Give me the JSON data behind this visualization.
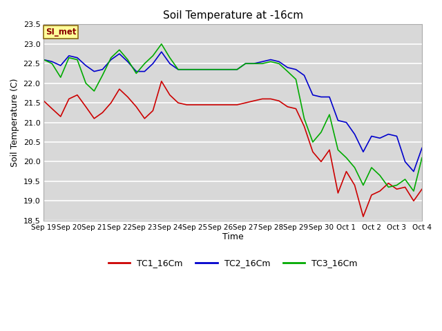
{
  "title": "Soil Temperature at -16cm",
  "xlabel": "Time",
  "ylabel": "Soil Temperature (C)",
  "ylim": [
    18.5,
    23.5
  ],
  "annotation": "SI_met",
  "outer_bg": "#ffffff",
  "plot_bg_color": "#d8d8d8",
  "xtick_labels": [
    "Sep 19",
    "Sep 20",
    "Sep 21",
    "Sep 22",
    "Sep 23",
    "Sep 24",
    "Sep 25",
    "Sep 26",
    "Sep 27",
    "Sep 28",
    "Sep 29",
    "Sep 30",
    "Oct 1",
    "Oct 2",
    "Oct 3",
    "Oct 4"
  ],
  "ytick_vals": [
    18.5,
    19.0,
    19.5,
    20.0,
    20.5,
    21.0,
    21.5,
    22.0,
    22.5,
    23.0,
    23.5
  ],
  "series": {
    "TC1_16Cm": {
      "color": "#cc0000",
      "x": [
        0,
        0.33,
        0.67,
        1.0,
        1.33,
        1.67,
        2.0,
        2.33,
        2.67,
        3.0,
        3.33,
        3.67,
        4.0,
        4.33,
        4.67,
        5.0,
        5.33,
        5.67,
        6.0,
        6.33,
        6.67,
        7.0,
        7.33,
        7.67,
        8.0,
        8.33,
        8.67,
        9.0,
        9.33,
        9.67,
        10.0,
        10.33,
        10.67,
        11.0,
        11.33,
        11.67,
        12.0,
        12.33,
        12.67,
        13.0,
        13.33,
        13.67,
        14.0,
        14.33,
        14.67,
        15.0
      ],
      "y": [
        21.55,
        21.35,
        21.15,
        21.6,
        21.7,
        21.4,
        21.1,
        21.25,
        21.5,
        21.85,
        21.65,
        21.4,
        21.1,
        21.3,
        22.05,
        21.7,
        21.5,
        21.45,
        21.45,
        21.45,
        21.45,
        21.45,
        21.45,
        21.45,
        21.5,
        21.55,
        21.6,
        21.6,
        21.55,
        21.4,
        21.35,
        20.9,
        20.25,
        20.0,
        20.3,
        19.2,
        19.75,
        19.4,
        18.6,
        19.15,
        19.25,
        19.45,
        19.3,
        19.35,
        19.0,
        19.3
      ]
    },
    "TC2_16Cm": {
      "color": "#0000cc",
      "x": [
        0,
        0.33,
        0.67,
        1.0,
        1.33,
        1.67,
        2.0,
        2.33,
        2.67,
        3.0,
        3.33,
        3.67,
        4.0,
        4.33,
        4.67,
        5.0,
        5.33,
        5.67,
        6.0,
        6.33,
        6.67,
        7.0,
        7.33,
        7.67,
        8.0,
        8.33,
        8.67,
        9.0,
        9.33,
        9.67,
        10.0,
        10.33,
        10.67,
        11.0,
        11.33,
        11.67,
        12.0,
        12.33,
        12.67,
        13.0,
        13.33,
        13.67,
        14.0,
        14.33,
        14.67,
        15.0
      ],
      "y": [
        22.6,
        22.55,
        22.45,
        22.7,
        22.65,
        22.45,
        22.3,
        22.35,
        22.6,
        22.75,
        22.55,
        22.3,
        22.3,
        22.5,
        22.8,
        22.5,
        22.35,
        22.35,
        22.35,
        22.35,
        22.35,
        22.35,
        22.35,
        22.35,
        22.5,
        22.5,
        22.55,
        22.6,
        22.55,
        22.4,
        22.35,
        22.2,
        21.7,
        21.65,
        21.65,
        21.05,
        21.0,
        20.7,
        20.25,
        20.65,
        20.6,
        20.7,
        20.65,
        20.0,
        19.75,
        20.35
      ]
    },
    "TC3_16Cm": {
      "color": "#00aa00",
      "x": [
        0,
        0.33,
        0.67,
        1.0,
        1.33,
        1.67,
        2.0,
        2.33,
        2.67,
        3.0,
        3.33,
        3.67,
        4.0,
        4.33,
        4.67,
        5.0,
        5.33,
        5.67,
        6.0,
        6.33,
        6.67,
        7.0,
        7.33,
        7.67,
        8.0,
        8.33,
        8.67,
        9.0,
        9.33,
        9.67,
        10.0,
        10.33,
        10.67,
        11.0,
        11.33,
        11.67,
        12.0,
        12.33,
        12.67,
        13.0,
        13.33,
        13.67,
        14.0,
        14.33,
        14.67,
        15.0
      ],
      "y": [
        22.6,
        22.5,
        22.15,
        22.65,
        22.6,
        22.0,
        21.8,
        22.2,
        22.65,
        22.85,
        22.6,
        22.25,
        22.5,
        22.7,
        23.0,
        22.65,
        22.35,
        22.35,
        22.35,
        22.35,
        22.35,
        22.35,
        22.35,
        22.35,
        22.5,
        22.5,
        22.5,
        22.55,
        22.5,
        22.3,
        22.1,
        21.1,
        20.5,
        20.75,
        21.2,
        20.3,
        20.1,
        19.85,
        19.4,
        19.85,
        19.65,
        19.35,
        19.4,
        19.55,
        19.25,
        20.1
      ]
    }
  }
}
